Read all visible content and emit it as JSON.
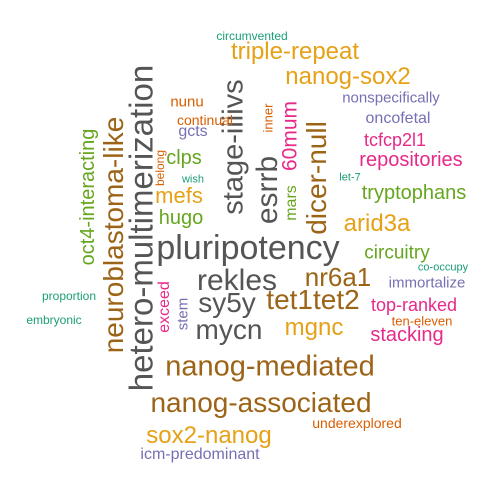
{
  "colors": {
    "gray": "#555555",
    "brown": "#9c6417",
    "orange": "#e6a117",
    "green": "#66a61e",
    "magenta": "#e7298a",
    "teal": "#1b9e77",
    "purple": "#7570b3",
    "redorange": "#d95f02"
  },
  "words": [
    {
      "id": "pluripotency",
      "text": "pluripotency",
      "color": "#555555"
    },
    {
      "id": "hetero-multimerization",
      "text": "hetero-multimerization",
      "color": "#555555"
    },
    {
      "id": "rekles",
      "text": "rekles",
      "color": "#555555"
    },
    {
      "id": "sy5y",
      "text": "sy5y",
      "color": "#555555"
    },
    {
      "id": "mycn",
      "text": "mycn",
      "color": "#555555"
    },
    {
      "id": "stage-iiiivs",
      "text": "stage-iiiivs",
      "color": "#555555"
    },
    {
      "id": "esrrb",
      "text": "esrrb",
      "color": "#555555"
    },
    {
      "id": "tet1tet2",
      "text": "tet1tet2",
      "color": "#9c6417"
    },
    {
      "id": "nr6a1",
      "text": "nr6a1",
      "color": "#9c6417"
    },
    {
      "id": "nanog-mediated",
      "text": "nanog-mediated",
      "color": "#9c6417"
    },
    {
      "id": "nanog-associated",
      "text": "nanog-associated",
      "color": "#9c6417"
    },
    {
      "id": "neuroblastoma-like",
      "text": "neuroblastoma-like",
      "color": "#9c6417"
    },
    {
      "id": "dicer-null",
      "text": "dicer-null",
      "color": "#9c6417"
    },
    {
      "id": "triple-repeat",
      "text": "triple-repeat",
      "color": "#e6a117"
    },
    {
      "id": "nanog-sox2",
      "text": "nanog-sox2",
      "color": "#e6a117"
    },
    {
      "id": "sox2-nanog",
      "text": "sox2-nanog",
      "color": "#e6a117"
    },
    {
      "id": "mgnc",
      "text": "mgnc",
      "color": "#e6a117"
    },
    {
      "id": "arid3a",
      "text": "arid3a",
      "color": "#e6a117"
    },
    {
      "id": "mefs",
      "text": "mefs",
      "color": "#e6a117"
    },
    {
      "id": "60mum",
      "text": "60mum",
      "color": "#e7298a"
    },
    {
      "id": "repositories",
      "text": "repositories",
      "color": "#e7298a"
    },
    {
      "id": "tcfcp2l1",
      "text": "tcfcp2l1",
      "color": "#e7298a"
    },
    {
      "id": "top-ranked",
      "text": "top-ranked",
      "color": "#e7298a"
    },
    {
      "id": "stacking",
      "text": "stacking",
      "color": "#e7298a"
    },
    {
      "id": "exceed",
      "text": "exceed",
      "color": "#e7298a"
    },
    {
      "id": "tryptophans",
      "text": "tryptophans",
      "color": "#66a61e"
    },
    {
      "id": "circuitry",
      "text": "circuitry",
      "color": "#66a61e"
    },
    {
      "id": "oct4-interacting",
      "text": "oct4-interacting",
      "color": "#66a61e"
    },
    {
      "id": "clps",
      "text": "clps",
      "color": "#66a61e"
    },
    {
      "id": "hugo",
      "text": "hugo",
      "color": "#66a61e"
    },
    {
      "id": "mars",
      "text": "mars",
      "color": "#66a61e"
    },
    {
      "id": "wish",
      "text": "wish",
      "color": "#1b9e77"
    },
    {
      "id": "let-7",
      "text": "let-7",
      "color": "#1b9e77"
    },
    {
      "id": "circumvented",
      "text": "circumvented",
      "color": "#1b9e77"
    },
    {
      "id": "proportion",
      "text": "proportion",
      "color": "#1b9e77"
    },
    {
      "id": "embryonic",
      "text": "embryonic",
      "color": "#1b9e77"
    },
    {
      "id": "co-occupy",
      "text": "co-occupy",
      "color": "#1b9e77"
    },
    {
      "id": "nonspecifically",
      "text": "nonspecifically",
      "color": "#7570b3"
    },
    {
      "id": "oncofetal",
      "text": "oncofetal",
      "color": "#7570b3"
    },
    {
      "id": "immortalize",
      "text": "immortalize",
      "color": "#7570b3"
    },
    {
      "id": "icm-predominant",
      "text": "icm-predominant",
      "color": "#7570b3"
    },
    {
      "id": "gcts",
      "text": "gcts",
      "color": "#7570b3"
    },
    {
      "id": "stem",
      "text": "stem",
      "color": "#7570b3"
    },
    {
      "id": "nunu",
      "text": "nunu",
      "color": "#d95f02"
    },
    {
      "id": "continual",
      "text": "continual",
      "color": "#d95f02"
    },
    {
      "id": "belong",
      "text": "belong",
      "color": "#d95f02"
    },
    {
      "id": "inner",
      "text": "inner",
      "color": "#d95f02"
    },
    {
      "id": "ten-eleven",
      "text": "ten-eleven",
      "color": "#d95f02"
    },
    {
      "id": "underexplored",
      "text": "underexplored",
      "color": "#d95f02"
    }
  ]
}
